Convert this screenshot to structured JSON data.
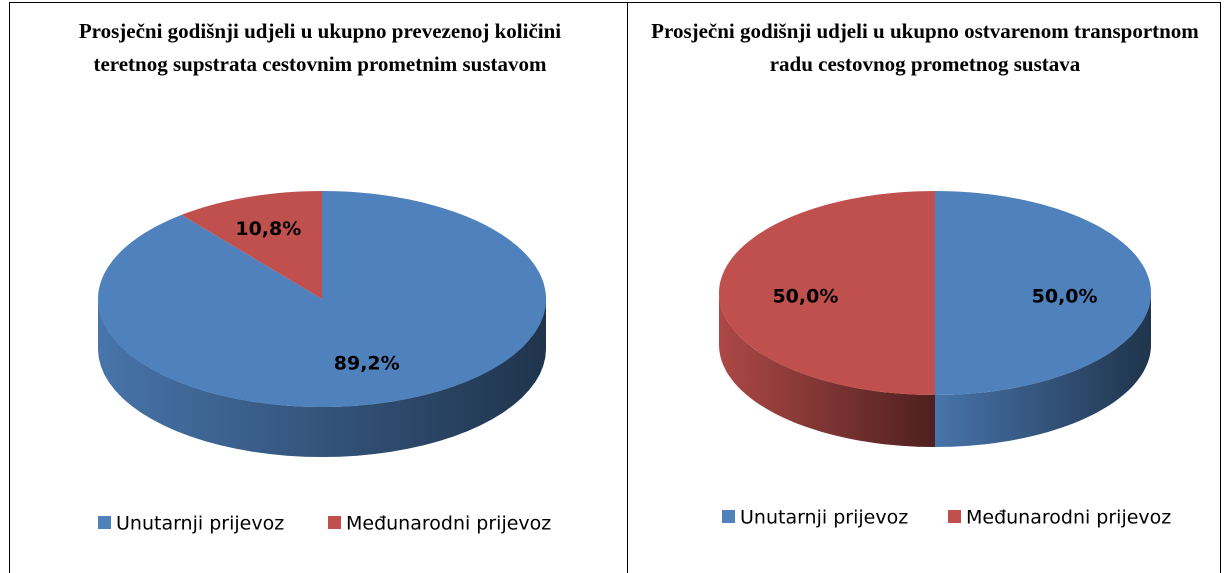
{
  "chart_data": [
    {
      "type": "pie3d",
      "title": "Prosječni godišnji udjeli u ukupno prevezenoj količini teretnog supstrata cestovnim prometnim sustavom",
      "categories": [
        "Unutarnji prijevoz",
        "Međunarodni prijevoz"
      ],
      "values": [
        89.2,
        10.8
      ],
      "value_labels": [
        "89,2%",
        "10,8%"
      ],
      "colors": [
        "#4f81bd",
        "#c0504d"
      ]
    },
    {
      "type": "pie3d",
      "title": "Prosječni godišnji udjeli u ukupno ostvarenom transportnom radu cestovnog prometnog sustava",
      "categories": [
        "Unutarnji prijevoz",
        "Međunarodni prijevoz"
      ],
      "values": [
        50.0,
        50.0
      ],
      "value_labels": [
        "50,0%",
        "50,0%"
      ],
      "colors": [
        "#4f81bd",
        "#c0504d"
      ]
    }
  ]
}
